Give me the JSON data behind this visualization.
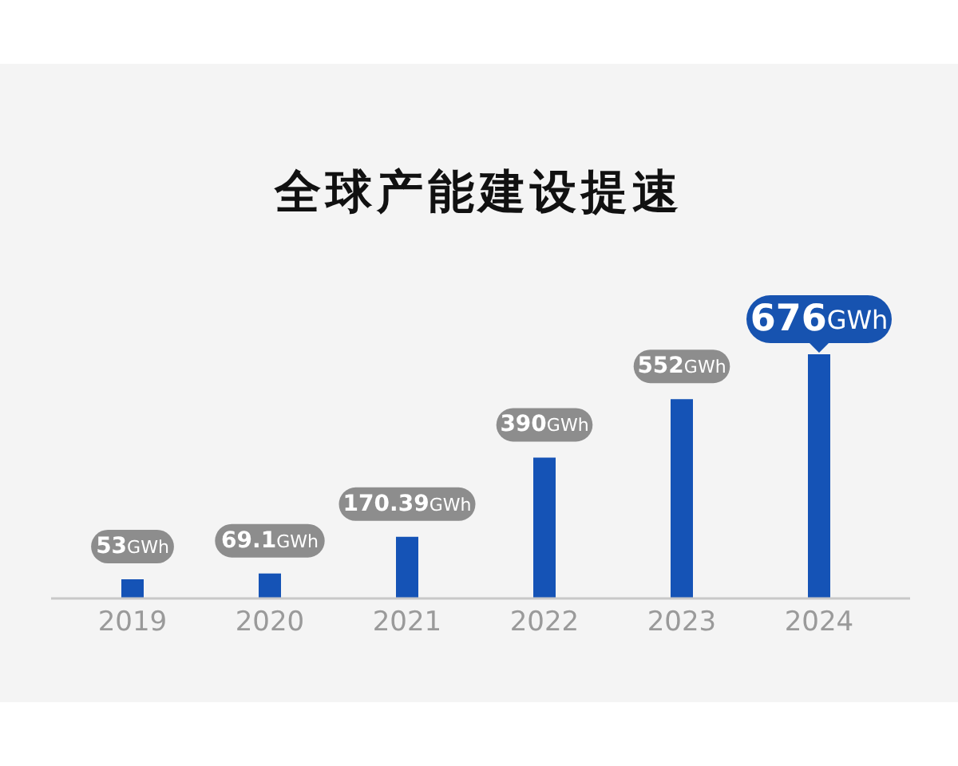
{
  "chart_data": {
    "type": "bar",
    "title": "全球产能建设提速",
    "categories": [
      "2019",
      "2020",
      "2021",
      "2022",
      "2023",
      "2024"
    ],
    "values": [
      53,
      69.1,
      170.39,
      390,
      552,
      676
    ],
    "value_labels": [
      "53GWh",
      "69.1GWh",
      "170.39GWh",
      "390GWh",
      "552GWh",
      "676GWh"
    ],
    "color": "#1553b6"
  }
}
